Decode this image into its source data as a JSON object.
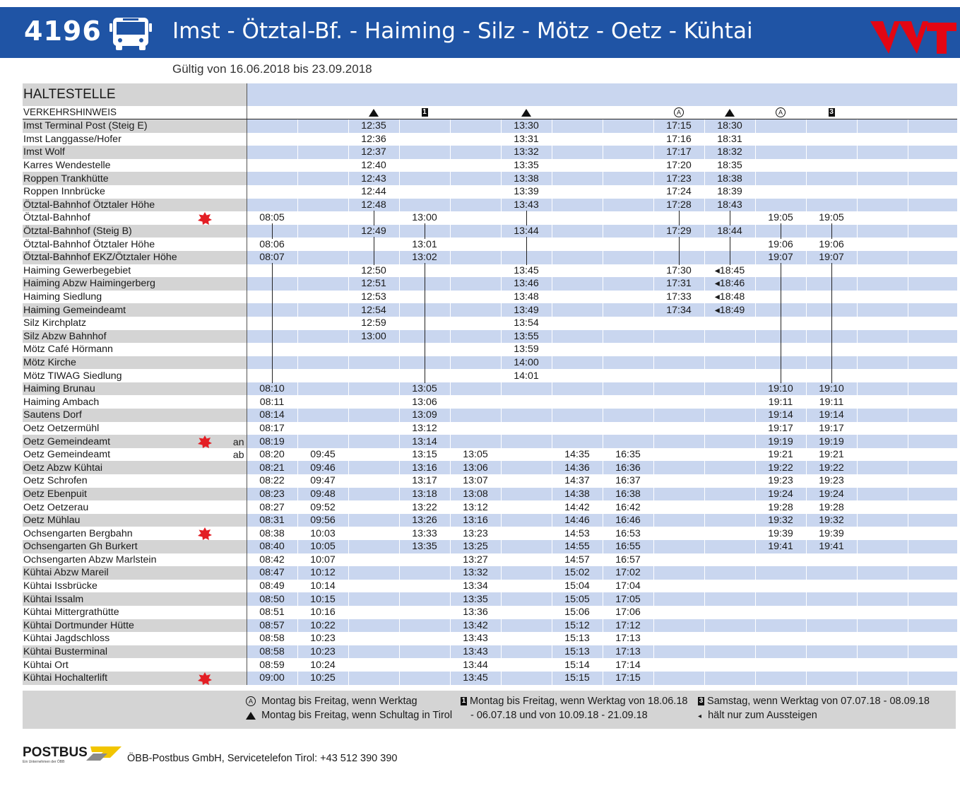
{
  "header": {
    "route_number": "4196",
    "title": "Imst - Ötztal-Bf. - Haiming - Silz - Mötz - Oetz - Kühtai",
    "validity": "Gültig von 16.06.2018 bis 23.09.2018",
    "logo": "VVT",
    "bus_icon": "bus-icon"
  },
  "table": {
    "header_label": "HALTESTELLE",
    "note_label": "VERKEHRSHINWEIS",
    "notes": [
      "",
      "",
      "triangle",
      "1",
      "",
      "triangle",
      "",
      "",
      "A",
      "triangle",
      "A",
      "3",
      "",
      ""
    ],
    "rows": [
      {
        "name": "Imst Terminal Post (Steig E)",
        "an": "",
        "star": false,
        "t": [
          "",
          "",
          "12:35",
          "",
          "",
          "13:30",
          "",
          "",
          "17:15",
          "18:30",
          "",
          "",
          "",
          ""
        ]
      },
      {
        "name": "Imst Langgasse/Hofer",
        "an": "",
        "star": false,
        "t": [
          "",
          "",
          "12:36",
          "",
          "",
          "13:31",
          "",
          "",
          "17:16",
          "18:31",
          "",
          "",
          "",
          ""
        ]
      },
      {
        "name": "Imst Wolf",
        "an": "",
        "star": false,
        "t": [
          "",
          "",
          "12:37",
          "",
          "",
          "13:32",
          "",
          "",
          "17:17",
          "18:32",
          "",
          "",
          "",
          ""
        ]
      },
      {
        "name": "Karres Wendestelle",
        "an": "",
        "star": false,
        "t": [
          "",
          "",
          "12:40",
          "",
          "",
          "13:35",
          "",
          "",
          "17:20",
          "18:35",
          "",
          "",
          "",
          ""
        ]
      },
      {
        "name": "Roppen Trankhütte",
        "an": "",
        "star": false,
        "t": [
          "",
          "",
          "12:43",
          "",
          "",
          "13:38",
          "",
          "",
          "17:23",
          "18:38",
          "",
          "",
          "",
          ""
        ]
      },
      {
        "name": "Roppen Innbrücke",
        "an": "",
        "star": false,
        "t": [
          "",
          "",
          "12:44",
          "",
          "",
          "13:39",
          "",
          "",
          "17:24",
          "18:39",
          "",
          "",
          "",
          ""
        ]
      },
      {
        "name": "Ötztal-Bahnhof Ötztaler Höhe",
        "an": "",
        "star": false,
        "t": [
          "",
          "",
          "12:48",
          "",
          "",
          "13:43",
          "",
          "",
          "17:28",
          "18:43",
          "",
          "",
          "",
          ""
        ]
      },
      {
        "name": "Ötztal-Bahnhof",
        "an": "",
        "star": true,
        "t": [
          "08:05",
          "",
          "|",
          "13:00",
          "",
          "|",
          "",
          "",
          "|",
          "|",
          "19:05",
          "19:05",
          "",
          ""
        ]
      },
      {
        "name": "Ötztal-Bahnhof (Steig B)",
        "an": "",
        "star": false,
        "t": [
          "|",
          "",
          "12:49",
          "|",
          "",
          "13:44",
          "",
          "",
          "17:29",
          "18:44",
          "|",
          "|",
          "",
          ""
        ]
      },
      {
        "name": "Ötztal-Bahnhof Ötztaler Höhe",
        "an": "",
        "star": false,
        "t": [
          "08:06",
          "",
          "|",
          "13:01",
          "",
          "|",
          "",
          "",
          "|",
          "|",
          "19:06",
          "19:06",
          "",
          ""
        ]
      },
      {
        "name": "Ötztal-Bahnhof EKZ/Ötztaler Höhe",
        "an": "",
        "star": false,
        "t": [
          "08:07",
          "",
          "|",
          "13:02",
          "",
          "|",
          "",
          "",
          "|",
          "|",
          "19:07",
          "19:07",
          "",
          ""
        ]
      },
      {
        "name": "Haiming Gewerbegebiet",
        "an": "",
        "star": false,
        "t": [
          "|",
          "",
          "12:50",
          "|",
          "",
          "13:45",
          "",
          "",
          "17:30",
          "◂18:45",
          "|",
          "|",
          "",
          ""
        ]
      },
      {
        "name": "Haiming Abzw Haimingerberg",
        "an": "",
        "star": false,
        "t": [
          "|",
          "",
          "12:51",
          "|",
          "",
          "13:46",
          "",
          "",
          "17:31",
          "◂18:46",
          "|",
          "|",
          "",
          ""
        ]
      },
      {
        "name": "Haiming Siedlung",
        "an": "",
        "star": false,
        "t": [
          "|",
          "",
          "12:53",
          "|",
          "",
          "13:48",
          "",
          "",
          "17:33",
          "◂18:48",
          "|",
          "|",
          "",
          ""
        ]
      },
      {
        "name": "Haiming Gemeindeamt",
        "an": "",
        "star": false,
        "t": [
          "|",
          "",
          "12:54",
          "|",
          "",
          "13:49",
          "",
          "",
          "17:34",
          "◂18:49",
          "|",
          "|",
          "",
          ""
        ]
      },
      {
        "name": "Silz Kirchplatz",
        "an": "",
        "star": false,
        "t": [
          "|",
          "",
          "12:59",
          "|",
          "",
          "13:54",
          "",
          "",
          "",
          "",
          "|",
          "|",
          "",
          ""
        ]
      },
      {
        "name": "Silz Abzw Bahnhof",
        "an": "",
        "star": false,
        "t": [
          "|",
          "",
          "13:00",
          "|",
          "",
          "13:55",
          "",
          "",
          "",
          "",
          "|",
          "|",
          "",
          ""
        ]
      },
      {
        "name": "Mötz Café Hörmann",
        "an": "",
        "star": false,
        "t": [
          "|",
          "",
          "",
          "|",
          "",
          "13:59",
          "",
          "",
          "",
          "",
          "|",
          "|",
          "",
          ""
        ]
      },
      {
        "name": "Mötz Kirche",
        "an": "",
        "star": false,
        "t": [
          "|",
          "",
          "",
          "|",
          "",
          "14:00",
          "",
          "",
          "",
          "",
          "|",
          "|",
          "",
          ""
        ]
      },
      {
        "name": "Mötz TIWAG Siedlung",
        "an": "",
        "star": false,
        "t": [
          "|",
          "",
          "",
          "|",
          "",
          "14:01",
          "",
          "",
          "",
          "",
          "|",
          "|",
          "",
          ""
        ]
      },
      {
        "name": "Haiming Brunau",
        "an": "",
        "star": false,
        "t": [
          "08:10",
          "",
          "",
          "13:05",
          "",
          "",
          "",
          "",
          "",
          "",
          "19:10",
          "19:10",
          "",
          ""
        ]
      },
      {
        "name": "Haiming Ambach",
        "an": "",
        "star": false,
        "t": [
          "08:11",
          "",
          "",
          "13:06",
          "",
          "",
          "",
          "",
          "",
          "",
          "19:11",
          "19:11",
          "",
          ""
        ]
      },
      {
        "name": "Sautens Dorf",
        "an": "",
        "star": false,
        "t": [
          "08:14",
          "",
          "",
          "13:09",
          "",
          "",
          "",
          "",
          "",
          "",
          "19:14",
          "19:14",
          "",
          ""
        ]
      },
      {
        "name": "Oetz Oetzermühl",
        "an": "",
        "star": false,
        "t": [
          "08:17",
          "",
          "",
          "13:12",
          "",
          "",
          "",
          "",
          "",
          "",
          "19:17",
          "19:17",
          "",
          ""
        ]
      },
      {
        "name": "Oetz Gemeindeamt",
        "an": "an",
        "star": true,
        "t": [
          "08:19",
          "",
          "",
          "13:14",
          "",
          "",
          "",
          "",
          "",
          "",
          "19:19",
          "19:19",
          "",
          ""
        ]
      },
      {
        "name": "Oetz Gemeindeamt",
        "an": "ab",
        "star": false,
        "t": [
          "08:20",
          "09:45",
          "",
          "13:15",
          "13:05",
          "",
          "14:35",
          "16:35",
          "",
          "",
          "19:21",
          "19:21",
          "",
          ""
        ]
      },
      {
        "name": "Oetz Abzw Kühtai",
        "an": "",
        "star": false,
        "t": [
          "08:21",
          "09:46",
          "",
          "13:16",
          "13:06",
          "",
          "14:36",
          "16:36",
          "",
          "",
          "19:22",
          "19:22",
          "",
          ""
        ]
      },
      {
        "name": "Oetz Schrofen",
        "an": "",
        "star": false,
        "t": [
          "08:22",
          "09:47",
          "",
          "13:17",
          "13:07",
          "",
          "14:37",
          "16:37",
          "",
          "",
          "19:23",
          "19:23",
          "",
          ""
        ]
      },
      {
        "name": "Oetz Ebenpuit",
        "an": "",
        "star": false,
        "t": [
          "08:23",
          "09:48",
          "",
          "13:18",
          "13:08",
          "",
          "14:38",
          "16:38",
          "",
          "",
          "19:24",
          "19:24",
          "",
          ""
        ]
      },
      {
        "name": "Oetz Oetzerau",
        "an": "",
        "star": false,
        "t": [
          "08:27",
          "09:52",
          "",
          "13:22",
          "13:12",
          "",
          "14:42",
          "16:42",
          "",
          "",
          "19:28",
          "19:28",
          "",
          ""
        ]
      },
      {
        "name": "Oetz Mühlau",
        "an": "",
        "star": false,
        "t": [
          "08:31",
          "09:56",
          "",
          "13:26",
          "13:16",
          "",
          "14:46",
          "16:46",
          "",
          "",
          "19:32",
          "19:32",
          "",
          ""
        ]
      },
      {
        "name": "Ochsengarten Bergbahn",
        "an": "",
        "star": true,
        "t": [
          "08:38",
          "10:03",
          "",
          "13:33",
          "13:23",
          "",
          "14:53",
          "16:53",
          "",
          "",
          "19:39",
          "19:39",
          "",
          ""
        ]
      },
      {
        "name": "Ochsengarten Gh Burkert",
        "an": "",
        "star": false,
        "t": [
          "08:40",
          "10:05",
          "",
          "13:35",
          "13:25",
          "",
          "14:55",
          "16:55",
          "",
          "",
          "19:41",
          "19:41",
          "",
          ""
        ]
      },
      {
        "name": "Ochsengarten Abzw Marlstein",
        "an": "",
        "star": false,
        "t": [
          "08:42",
          "10:07",
          "",
          "",
          "13:27",
          "",
          "14:57",
          "16:57",
          "",
          "",
          "",
          "",
          "",
          ""
        ]
      },
      {
        "name": "Kühtai Abzw Mareil",
        "an": "",
        "star": false,
        "t": [
          "08:47",
          "10:12",
          "",
          "",
          "13:32",
          "",
          "15:02",
          "17:02",
          "",
          "",
          "",
          "",
          "",
          ""
        ]
      },
      {
        "name": "Kühtai Issbrücke",
        "an": "",
        "star": false,
        "t": [
          "08:49",
          "10:14",
          "",
          "",
          "13:34",
          "",
          "15:04",
          "17:04",
          "",
          "",
          "",
          "",
          "",
          ""
        ]
      },
      {
        "name": "Kühtai Issalm",
        "an": "",
        "star": false,
        "t": [
          "08:50",
          "10:15",
          "",
          "",
          "13:35",
          "",
          "15:05",
          "17:05",
          "",
          "",
          "",
          "",
          "",
          ""
        ]
      },
      {
        "name": "Kühtai Mittergrathütte",
        "an": "",
        "star": false,
        "t": [
          "08:51",
          "10:16",
          "",
          "",
          "13:36",
          "",
          "15:06",
          "17:06",
          "",
          "",
          "",
          "",
          "",
          ""
        ]
      },
      {
        "name": "Kühtai Dortmunder Hütte",
        "an": "",
        "star": false,
        "t": [
          "08:57",
          "10:22",
          "",
          "",
          "13:42",
          "",
          "15:12",
          "17:12",
          "",
          "",
          "",
          "",
          "",
          ""
        ]
      },
      {
        "name": "Kühtai Jagdschloss",
        "an": "",
        "star": false,
        "t": [
          "08:58",
          "10:23",
          "",
          "",
          "13:43",
          "",
          "15:13",
          "17:13",
          "",
          "",
          "",
          "",
          "",
          ""
        ]
      },
      {
        "name": "Kühtai Busterminal",
        "an": "",
        "star": false,
        "t": [
          "08:58",
          "10:23",
          "",
          "",
          "13:43",
          "",
          "15:13",
          "17:13",
          "",
          "",
          "",
          "",
          "",
          ""
        ]
      },
      {
        "name": "Kühtai Ort",
        "an": "",
        "star": false,
        "t": [
          "08:59",
          "10:24",
          "",
          "",
          "13:44",
          "",
          "15:14",
          "17:14",
          "",
          "",
          "",
          "",
          "",
          ""
        ]
      },
      {
        "name": "Kühtai Hochalterlift",
        "an": "",
        "star": true,
        "t": [
          "09:00",
          "10:25",
          "",
          "",
          "13:45",
          "",
          "15:15",
          "17:15",
          "",
          "",
          "",
          "",
          "",
          ""
        ]
      }
    ]
  },
  "legend": {
    "a": "Montag bis Freitag, wenn Werktag",
    "triangle": "Montag bis Freitag, wenn Schultag in Tirol",
    "one_line1": "Montag bis Freitag, wenn Werktag von 18.06.18",
    "one_line2": "- 06.07.18 und von 10.09.18 - 21.09.18",
    "three": "Samstag, wenn Werktag von 07.07.18 - 08.09.18",
    "out": "hält nur zum Aussteigen"
  },
  "footer": {
    "brand": "POSTBUS",
    "brand_sub": "Ein Unternehmen der ÖBB",
    "contact": "ÖBB-Postbus GmbH, Servicetelefon Tirol: +43 512 390 390"
  },
  "colors": {
    "header_blue": "#1f54a5",
    "row_blue": "#c9d6ef",
    "row_grey": "#d4d4d4",
    "star_red": "#e31e24",
    "logo_red": "#e30613"
  }
}
